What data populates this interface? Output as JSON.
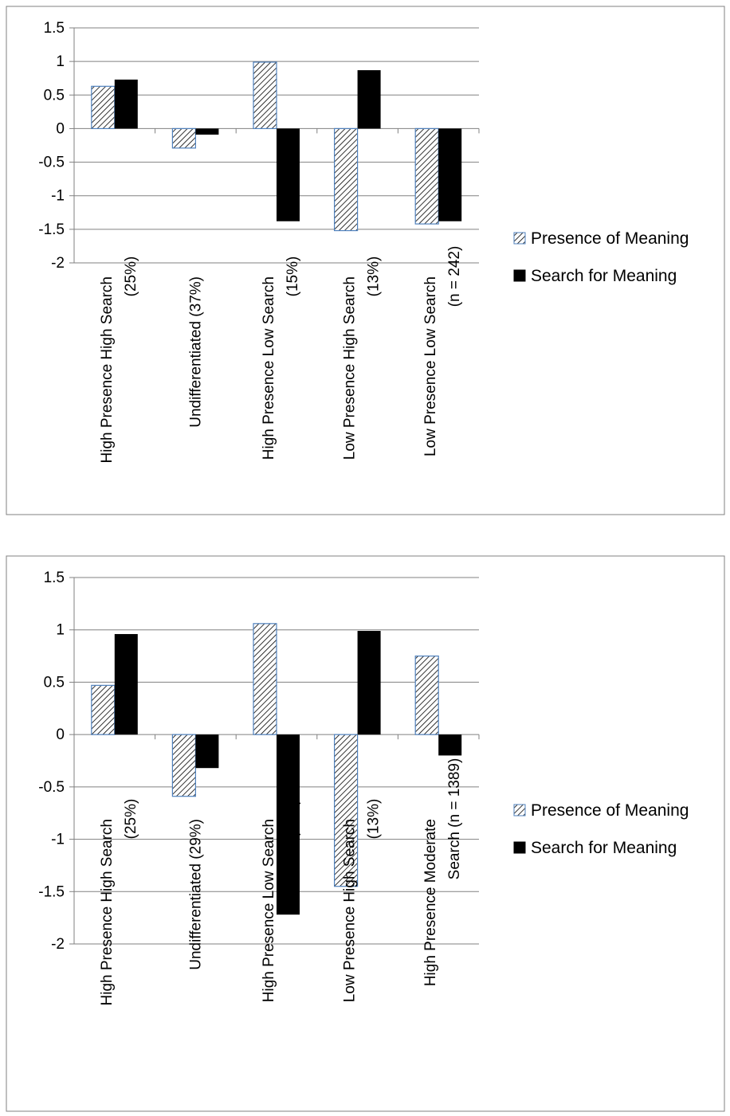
{
  "colors": {
    "presence": "#ffffff",
    "presence_hatch": "#000000",
    "presence_border": "#4f81bd",
    "search": "#000000",
    "grid": "#808080",
    "frame": "#808080"
  },
  "chart_data": [
    {
      "type": "bar",
      "ylim": [
        -2,
        1.5
      ],
      "yticks": [
        1.5,
        1,
        0.5,
        0,
        -0.5,
        -1,
        -1.5,
        -2
      ],
      "ytick_labels": [
        "1.5",
        "1",
        "0.5",
        "0",
        "-0.5",
        "-1",
        "-1.5",
        "-2"
      ],
      "grid": true,
      "legend_position": "right",
      "categories": [
        [
          "High Presence High Search",
          "(25%)"
        ],
        [
          "Undifferentiated (37%)"
        ],
        [
          "High Presence Low Search",
          "(15%)"
        ],
        [
          "Low Presence High Search",
          "(13%)"
        ],
        [
          "Low Presence Low Search",
          "(n = 242)"
        ]
      ],
      "series": [
        {
          "name": "Presence of Meaning",
          "pattern": "hatched",
          "values": [
            0.63,
            -0.29,
            0.99,
            -1.52,
            -1.42
          ]
        },
        {
          "name": "Search for Meaning",
          "pattern": "solid",
          "values": [
            0.73,
            -0.09,
            -1.38,
            0.87,
            -1.38
          ]
        }
      ]
    },
    {
      "type": "bar",
      "ylim": [
        -2,
        1.5
      ],
      "yticks": [
        1.5,
        1,
        0.5,
        0,
        -0.5,
        -1,
        -1.5,
        -2
      ],
      "ytick_labels": [
        "1.5",
        "1",
        "0.5",
        "0",
        "-0.5",
        "-1",
        "-1.5",
        "-2"
      ],
      "grid": true,
      "legend_position": "right",
      "categories": [
        [
          "High Presence High Search",
          "(25%)"
        ],
        [
          "Undifferentiated (29%)"
        ],
        [
          "High Presence Low Search",
          "(11%)"
        ],
        [
          "Low Presence High Search",
          "(13%)"
        ],
        [
          "High Presence Moderate",
          "Search (n = 1389)"
        ]
      ],
      "series": [
        {
          "name": "Presence of Meaning",
          "pattern": "hatched",
          "values": [
            0.47,
            -0.59,
            1.06,
            -1.45,
            0.75
          ]
        },
        {
          "name": "Search for Meaning",
          "pattern": "solid",
          "values": [
            0.96,
            -0.32,
            -1.72,
            0.99,
            -0.2
          ]
        }
      ]
    }
  ]
}
